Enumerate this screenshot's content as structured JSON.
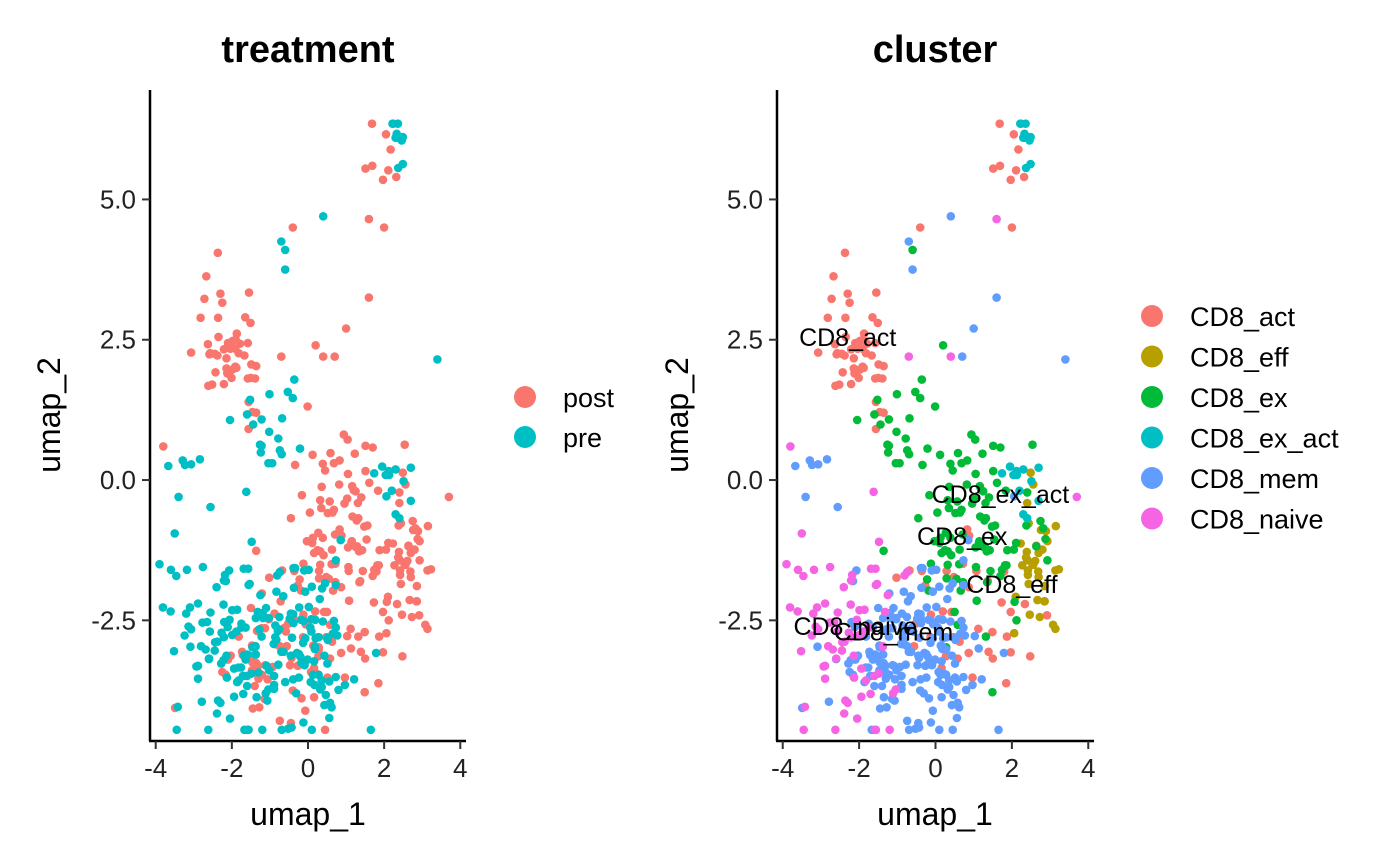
{
  "chart_data": [
    {
      "type": "scatter",
      "title": "treatment",
      "xlabel": "umap_1",
      "ylabel": "umap_2",
      "xlim": [
        -4.15,
        4.15
      ],
      "ylim": [
        -4.65,
        6.95
      ],
      "xticks": [
        "-4",
        "-2",
        "0",
        "2",
        "4"
      ],
      "xtick_values": [
        -4,
        -2,
        0,
        2,
        4
      ],
      "yticks": [
        "-2.5",
        "0.0",
        "2.5",
        "5.0"
      ],
      "ytick_values": [
        -2.5,
        0.0,
        2.5,
        5.0
      ],
      "grid": false,
      "legend_position": "right",
      "series": [
        {
          "name": "post",
          "color": "#F8766D",
          "points": []
        },
        {
          "name": "pre",
          "color": "#00BFC4",
          "points": []
        }
      ]
    },
    {
      "type": "scatter",
      "title": "cluster",
      "xlabel": "umap_1",
      "ylabel": "umap_2",
      "xlim": [
        -4.15,
        4.15
      ],
      "ylim": [
        -4.65,
        6.95
      ],
      "xticks": [
        "-4",
        "-2",
        "0",
        "2",
        "4"
      ],
      "xtick_values": [
        -4,
        -2,
        0,
        2,
        4
      ],
      "yticks": [
        "-2.5",
        "0.0",
        "2.5",
        "5.0"
      ],
      "ytick_values": [
        -2.5,
        0.0,
        2.5,
        5.0
      ],
      "grid": false,
      "legend_position": "right",
      "series": [
        {
          "name": "CD8_act",
          "color": "#F8766D",
          "points": []
        },
        {
          "name": "CD8_eff",
          "color": "#B79F00",
          "points": []
        },
        {
          "name": "CD8_ex",
          "color": "#00BA38",
          "points": []
        },
        {
          "name": "CD8_ex_act",
          "color": "#00BFC4",
          "points": []
        },
        {
          "name": "CD8_mem",
          "color": "#619CFF",
          "points": []
        },
        {
          "name": "CD8_naive",
          "color": "#F564E3",
          "points": []
        }
      ],
      "annotations": [
        {
          "text": "CD8_act",
          "x": -2.3,
          "y": 2.55
        },
        {
          "text": "CD8_ex_act",
          "x": 1.7,
          "y": -0.25
        },
        {
          "text": "CD8_ex",
          "x": 0.7,
          "y": -1.0
        },
        {
          "text": "CD8_eff",
          "x": 2.0,
          "y": -1.85
        },
        {
          "text": "CD8_naive",
          "x": -2.1,
          "y": -2.6
        },
        {
          "text": "CD8_mem",
          "x": -1.1,
          "y": -2.7
        }
      ]
    }
  ],
  "clusters": [
    {
      "name": "CD8_act",
      "treatment": "post",
      "cx": -2.0,
      "cy": 2.4,
      "sx": 0.5,
      "sy": 0.6,
      "n": 50
    },
    {
      "name": "CD8_act",
      "treatment": "post",
      "cx": 1.0,
      "cy": -2.6,
      "sx": 0.9,
      "sy": 0.8,
      "n": 40
    },
    {
      "name": "CD8_act",
      "treatment": "post",
      "cx": 2.2,
      "cy": 5.6,
      "sx": 0.2,
      "sy": 0.5,
      "n": 10
    },
    {
      "name": "CD8_eff",
      "treatment": "post",
      "cx": 2.6,
      "cy": -1.6,
      "sx": 0.35,
      "sy": 0.7,
      "n": 35
    },
    {
      "name": "CD8_ex",
      "treatment": "post",
      "cx": 1.0,
      "cy": -0.9,
      "sx": 0.8,
      "sy": 0.8,
      "n": 95
    },
    {
      "name": "CD8_ex",
      "treatment": "pre",
      "cx": -0.8,
      "cy": 0.8,
      "sx": 0.5,
      "sy": 0.6,
      "n": 20
    },
    {
      "name": "CD8_ex_act",
      "treatment": "pre",
      "cx": 2.3,
      "cy": 0.1,
      "sx": 0.5,
      "sy": 0.4,
      "n": 12
    },
    {
      "name": "CD8_ex_act",
      "treatment": "pre",
      "cx": 2.4,
      "cy": 6.0,
      "sx": 0.2,
      "sy": 0.3,
      "n": 8
    },
    {
      "name": "CD8_mem",
      "treatment": "pre",
      "cx": -0.3,
      "cy": -3.0,
      "sx": 1.0,
      "sy": 0.8,
      "n": 130
    },
    {
      "name": "CD8_mem",
      "treatment": "post",
      "cx": -0.8,
      "cy": -3.3,
      "sx": 0.8,
      "sy": 0.6,
      "n": 60
    },
    {
      "name": "CD8_mem",
      "treatment": "pre",
      "cx": -3.3,
      "cy": 0.3,
      "sx": 0.5,
      "sy": 0.3,
      "n": 6
    },
    {
      "name": "CD8_naive",
      "treatment": "pre",
      "cx": -2.3,
      "cy": -2.8,
      "sx": 0.7,
      "sy": 0.9,
      "n": 70
    }
  ],
  "extra_points": [
    {
      "cluster": "CD8_mem",
      "treatment": "pre",
      "x": 0.4,
      "y": 4.7
    },
    {
      "cluster": "CD8_naive",
      "treatment": "post",
      "x": 1.6,
      "y": 4.65
    },
    {
      "cluster": "CD8_act",
      "treatment": "post",
      "x": 2.0,
      "y": 4.5
    },
    {
      "cluster": "CD8_act",
      "treatment": "post",
      "x": -0.4,
      "y": 4.5
    },
    {
      "cluster": "CD8_mem",
      "treatment": "pre",
      "x": 3.4,
      "y": 2.15
    },
    {
      "cluster": "CD8_naive",
      "treatment": "post",
      "x": -0.7,
      "y": 2.2
    },
    {
      "cluster": "CD8_mem",
      "treatment": "pre",
      "x": -0.7,
      "y": 4.25
    },
    {
      "cluster": "CD8_ex",
      "treatment": "pre",
      "x": -0.6,
      "y": 4.1
    },
    {
      "cluster": "CD8_mem",
      "treatment": "pre",
      "x": -0.6,
      "y": 3.75
    },
    {
      "cluster": "CD8_mem",
      "treatment": "post",
      "x": 1.6,
      "y": 3.25
    },
    {
      "cluster": "CD8_naive",
      "treatment": "post",
      "x": 3.7,
      "y": -0.3
    },
    {
      "cluster": "CD8_naive",
      "treatment": "post",
      "x": -3.8,
      "y": 0.6
    },
    {
      "cluster": "CD8_mem",
      "treatment": "pre",
      "x": -3.4,
      "y": -0.3
    },
    {
      "cluster": "CD8_naive",
      "treatment": "pre",
      "x": -3.9,
      "y": -1.5
    },
    {
      "cluster": "CD8_naive",
      "treatment": "pre",
      "x": -3.6,
      "y": -1.6
    },
    {
      "cluster": "CD8_mem",
      "treatment": "post",
      "x": 1.0,
      "y": 2.7
    },
    {
      "cluster": "CD8_mem",
      "treatment": "post",
      "x": 0.7,
      "y": 2.2
    },
    {
      "cluster": "CD8_ex",
      "treatment": "post",
      "x": 0.2,
      "y": 2.4
    },
    {
      "cluster": "CD8_naive",
      "treatment": "post",
      "x": 0.4,
      "y": 2.2
    }
  ]
}
